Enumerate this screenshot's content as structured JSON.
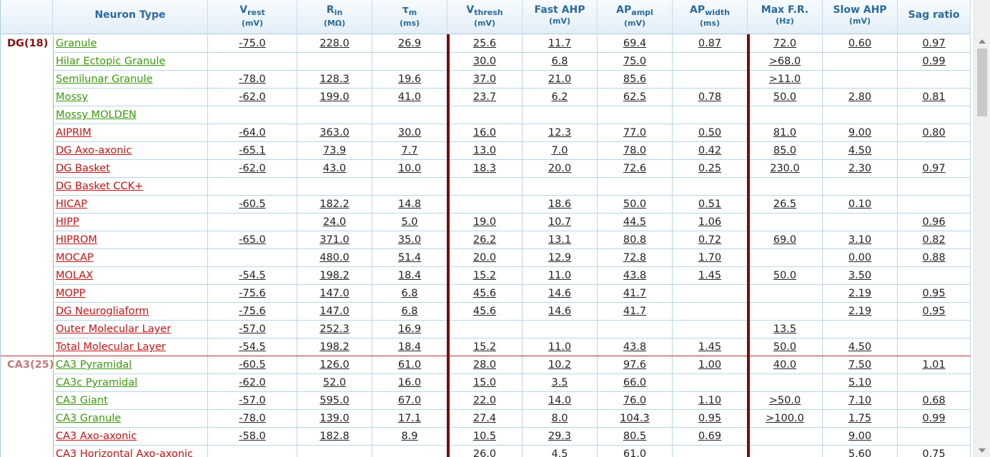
{
  "header": [
    {
      "main": "Neuron Type"
    },
    {
      "main": "V",
      "sub": "rest",
      "unit": "(mV)"
    },
    {
      "main": "R",
      "sub": "in",
      "unit": "(MΩ)"
    },
    {
      "main": "τ",
      "sub": "m",
      "unit": "(ms)"
    },
    {
      "main": "V",
      "sub": "thresh",
      "unit": "(mV)"
    },
    {
      "main": "Fast AHP",
      "unit": "(mV)"
    },
    {
      "main": "AP",
      "sub": "ampl",
      "unit": "(mV)"
    },
    {
      "main": "AP",
      "sub": "width",
      "unit": "(ms)"
    },
    {
      "main": "Max F.R.",
      "unit": "(Hz)"
    },
    {
      "main": "Slow AHP",
      "unit": "(mV)"
    },
    {
      "main": "Sag ratio"
    }
  ],
  "groups": [
    {
      "label": "DG(18)",
      "color": "#8b1010",
      "rows": [
        {
          "name": "Granule",
          "color": "#3a9a0a",
          "values": [
            "-75.0",
            "228.0",
            "26.9",
            "25.6",
            "11.7",
            "69.4",
            "0.87",
            "72.0",
            "0.60",
            "0.97"
          ]
        },
        {
          "name": "Hilar Ectopic Granule",
          "color": "#3a9a0a",
          "values": [
            null,
            null,
            null,
            "30.0",
            "6.8",
            "75.0",
            null,
            ">68.0",
            null,
            "0.99"
          ]
        },
        {
          "name": "Semilunar Granule",
          "color": "#3a9a0a",
          "values": [
            "-78.0",
            "128.3",
            "19.6",
            "37.0",
            "21.0",
            "85.6",
            null,
            ">11.0",
            null,
            null
          ]
        },
        {
          "name": "Mossy",
          "color": "#3a9a0a",
          "values": [
            "-62.0",
            "199.0",
            "41.0",
            "23.7",
            "6.2",
            "62.5",
            "0.78",
            "50.0",
            "2.80",
            "0.81"
          ]
        },
        {
          "name": "Mossy MOLDEN",
          "color": "#3a9a0a",
          "values": [
            null,
            null,
            null,
            null,
            null,
            null,
            null,
            null,
            null,
            null
          ]
        },
        {
          "name": "AIPRIM",
          "color": "#c81010",
          "values": [
            "-64.0",
            "363.0",
            "30.0",
            "16.0",
            "12.3",
            "77.0",
            "0.50",
            "81.0",
            "9.00",
            "0.80"
          ]
        },
        {
          "name": "DG Axo-axonic",
          "color": "#c81010",
          "values": [
            "-65.1",
            "73.9",
            "7.7",
            "13.0",
            "7.0",
            "78.0",
            "0.42",
            "85.0",
            "4.50",
            null
          ]
        },
        {
          "name": "DG Basket",
          "color": "#c81010",
          "values": [
            "-62.0",
            "43.0",
            "10.0",
            "18.3",
            "20.0",
            "72.6",
            "0.25",
            "230.0",
            "2.30",
            "0.97"
          ]
        },
        {
          "name": "DG Basket CCK+",
          "color": "#c81010",
          "values": [
            null,
            null,
            null,
            null,
            null,
            null,
            null,
            null,
            null,
            null
          ]
        },
        {
          "name": "HICAP",
          "color": "#c81010",
          "values": [
            "-60.5",
            "182.2",
            "14.8",
            null,
            "18.6",
            "50.0",
            "0.51",
            "26.5",
            "0.10",
            null
          ]
        },
        {
          "name": "HIPP",
          "color": "#c81010",
          "values": [
            null,
            "24.0",
            "5.0",
            "19.0",
            "10.7",
            "44.5",
            "1.06",
            null,
            null,
            "0.96"
          ]
        },
        {
          "name": "HIPROM",
          "color": "#c81010",
          "values": [
            "-65.0",
            "371.0",
            "35.0",
            "26.2",
            "13.1",
            "80.8",
            "0.72",
            "69.0",
            "3.10",
            "0.82"
          ]
        },
        {
          "name": "MOCAP",
          "color": "#c81010",
          "values": [
            null,
            "480.0",
            "51.4",
            "20.0",
            "12.9",
            "72.8",
            "1.70",
            null,
            "0.00",
            "0.88"
          ]
        },
        {
          "name": "MOLAX",
          "color": "#c81010",
          "values": [
            "-54.5",
            "198.2",
            "18.4",
            "15.2",
            "11.0",
            "43.8",
            "1.45",
            "50.0",
            "3.50",
            null
          ]
        },
        {
          "name": "MOPP",
          "color": "#c81010",
          "values": [
            "-75.6",
            "147.0",
            "6.8",
            "45.6",
            "14.6",
            "41.7",
            null,
            null,
            "2.19",
            "0.95"
          ]
        },
        {
          "name": "DG Neurogliaform",
          "color": "#c81010",
          "values": [
            "-75.6",
            "147.0",
            "6.8",
            "45.6",
            "14.6",
            "41.7",
            null,
            null,
            "2.19",
            "0.95"
          ]
        },
        {
          "name": "Outer Molecular Layer",
          "color": "#c81010",
          "values": [
            "-57.0",
            "252.3",
            "16.9",
            null,
            null,
            null,
            null,
            "13.5",
            null,
            null
          ]
        },
        {
          "name": "Total Molecular Layer",
          "color": "#c81010",
          "values": [
            "-54.5",
            "198.2",
            "18.4",
            "15.2",
            "11.0",
            "43.8",
            "1.45",
            "50.0",
            "4.50",
            null
          ]
        }
      ]
    },
    {
      "label": "CA3(25)",
      "color": "#c87878",
      "rows": [
        {
          "name": "CA3 Pyramidal",
          "color": "#3a9a0a",
          "values": [
            "-60.5",
            "126.0",
            "61.0",
            "28.0",
            "10.2",
            "97.6",
            "1.00",
            "40.0",
            "7.50",
            "1.01"
          ]
        },
        {
          "name": "CA3c Pyramidal",
          "color": "#3a9a0a",
          "values": [
            "-62.0",
            "52.0",
            "16.0",
            "15.0",
            "3.5",
            "66.0",
            null,
            null,
            "5.10",
            null
          ]
        },
        {
          "name": "CA3 Giant",
          "color": "#3a9a0a",
          "values": [
            "-57.0",
            "595.0",
            "67.0",
            "22.0",
            "14.0",
            "76.0",
            "1.10",
            ">50.0",
            "7.10",
            "0.68"
          ]
        },
        {
          "name": "CA3 Granule",
          "color": "#3a9a0a",
          "values": [
            "-78.0",
            "139.0",
            "17.1",
            "27.4",
            "8.0",
            "104.3",
            "0.95",
            ">100.0",
            "1.75",
            "0.99"
          ]
        },
        {
          "name": "CA3 Axo-axonic",
          "color": "#c81010",
          "values": [
            "-58.0",
            "182.8",
            "8.9",
            "10.5",
            "29.3",
            "80.5",
            "0.69",
            null,
            "9.00",
            null
          ]
        },
        {
          "name": "CA3 Horizontal Axo-axonic",
          "color": "#c81010",
          "values": [
            null,
            null,
            null,
            "26.0",
            "4.5",
            "61.0",
            null,
            null,
            "5.60",
            "0.75"
          ]
        }
      ]
    }
  ]
}
